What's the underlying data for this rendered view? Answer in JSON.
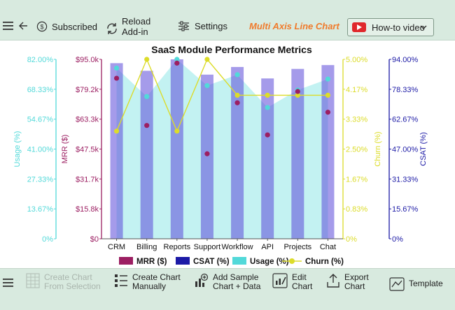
{
  "toolbar": {
    "subscribed_label": "Subscribed",
    "reload_label_1": "Reload",
    "reload_label_2": "Add-in",
    "settings_label": "Settings",
    "chart_type_label": "Multi Axis Line Chart",
    "howto_label": "How-to video"
  },
  "bottom_toolbar": {
    "create_selection_1": "Create Chart",
    "create_selection_2": "From Selection",
    "create_manually_1": "Create Chart",
    "create_manually_2": "Manually",
    "add_sample_1": "Add Sample",
    "add_sample_2": "Chart + Data",
    "edit_chart_1": "Edit",
    "edit_chart_2": "Chart",
    "export_chart_1": "Export",
    "export_chart_2": "Chart",
    "template_label": "Template"
  },
  "colors": {
    "mrr": "#9c1f62",
    "csat": "#1c1aa6",
    "usage": "#52d9d9",
    "churn": "#dcdc2a",
    "accent": "#f07a2b"
  },
  "icons": [
    "menu-icon",
    "back-arrow-icon",
    "dollar-circle-icon",
    "reload-icon",
    "settings-sliders-icon",
    "youtube-icon",
    "chevron-down-icon",
    "table-icon",
    "list-icon",
    "chart-data-icon",
    "edit-chart-icon",
    "export-icon",
    "template-icon"
  ],
  "chart_data": {
    "type": "line",
    "title": "SaaS Module Performance Metrics",
    "categories": [
      "CRM",
      "Billing",
      "Reports",
      "Support",
      "Workflow",
      "API",
      "Projects",
      "Chat"
    ],
    "axes": {
      "usage": {
        "label": "Usage (%)",
        "ticks": [
          "0%",
          "13.67%",
          "27.33%",
          "41.00%",
          "54.67%",
          "68.33%",
          "82.00%"
        ],
        "range": [
          0,
          82
        ]
      },
      "mrr": {
        "label": "MRR ($)",
        "ticks": [
          "$0",
          "$15.8k",
          "$31.7k",
          "$47.5k",
          "$63.3k",
          "$79.2k",
          "$95.0k"
        ],
        "range": [
          0,
          95000
        ]
      },
      "churn": {
        "label": "Churn (%)",
        "ticks": [
          "0%",
          "0.83%",
          "1.67%",
          "2.50%",
          "3.33%",
          "4.17%",
          "5.00%"
        ],
        "range": [
          0,
          5
        ]
      },
      "csat": {
        "label": "CSAT (%)",
        "ticks": [
          "0%",
          "15.67%",
          "31.33%",
          "47.00%",
          "62.67%",
          "78.33%",
          "94.00%"
        ],
        "range": [
          0,
          94
        ]
      }
    },
    "series": [
      {
        "name": "MRR ($)",
        "kind": "points",
        "axis": "mrr",
        "values": [
          85000,
          60000,
          93000,
          45000,
          72000,
          55000,
          78000,
          67000
        ]
      },
      {
        "name": "CSAT (%)",
        "kind": "bars",
        "axis": "csat",
        "values": [
          92,
          88,
          94,
          86,
          90,
          84,
          89,
          91
        ]
      },
      {
        "name": "Usage (%)",
        "kind": "area",
        "axis": "usage",
        "values": [
          78,
          65,
          82,
          70,
          75,
          60,
          68,
          73
        ]
      },
      {
        "name": "Churn (%)",
        "kind": "line",
        "axis": "churn",
        "values": [
          3.0,
          5.0,
          3.0,
          5.0,
          4.0,
          4.0,
          4.0,
          4.0
        ]
      }
    ],
    "legend": [
      "MRR ($)",
      "CSAT (%)",
      "Usage (%)",
      "Churn (%)"
    ],
    "legend_position": "bottom",
    "grid": false
  }
}
